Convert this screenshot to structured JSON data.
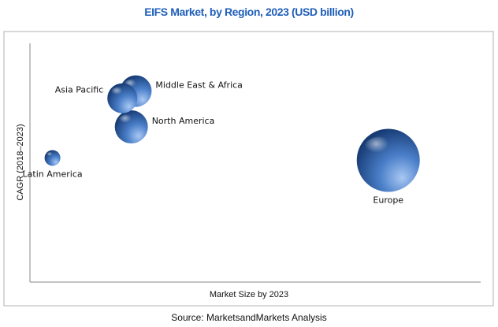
{
  "title": "EIFS Market, by Region, 2023 (USD billion)",
  "source": "Source: MarketsandMarkets Analysis",
  "colors": {
    "title": "#1f5fb8",
    "bubble_light": "#a9c8f3",
    "bubble_mid": "#4a7fc9",
    "bubble_dark": "#163a73",
    "frame": "#b0b0b0",
    "axis": "#8a8a8a"
  },
  "chart_data": {
    "type": "scatter",
    "title": "EIFS Market, by Region, 2023 (USD billion)",
    "xlabel": "Market Size by 2023",
    "ylabel": "CAGR (2018–2023)",
    "xlim": [
      0,
      100
    ],
    "ylim": [
      0,
      100
    ],
    "grid": false,
    "legend": "none",
    "points": [
      {
        "label": "Middle East & Africa",
        "x": 23.5,
        "y": 80,
        "size": 20,
        "label_pos": "right"
      },
      {
        "label": "Asia Pacific",
        "x": 20.5,
        "y": 77,
        "size": 19,
        "label_pos": "left"
      },
      {
        "label": "North America",
        "x": 22.5,
        "y": 65,
        "size": 21,
        "label_pos": "right"
      },
      {
        "label": "Latin America",
        "x": 5,
        "y": 52,
        "size": 10,
        "label_pos": "below"
      },
      {
        "label": "Europe",
        "x": 79.5,
        "y": 51,
        "size": 40,
        "label_pos": "below"
      }
    ]
  }
}
